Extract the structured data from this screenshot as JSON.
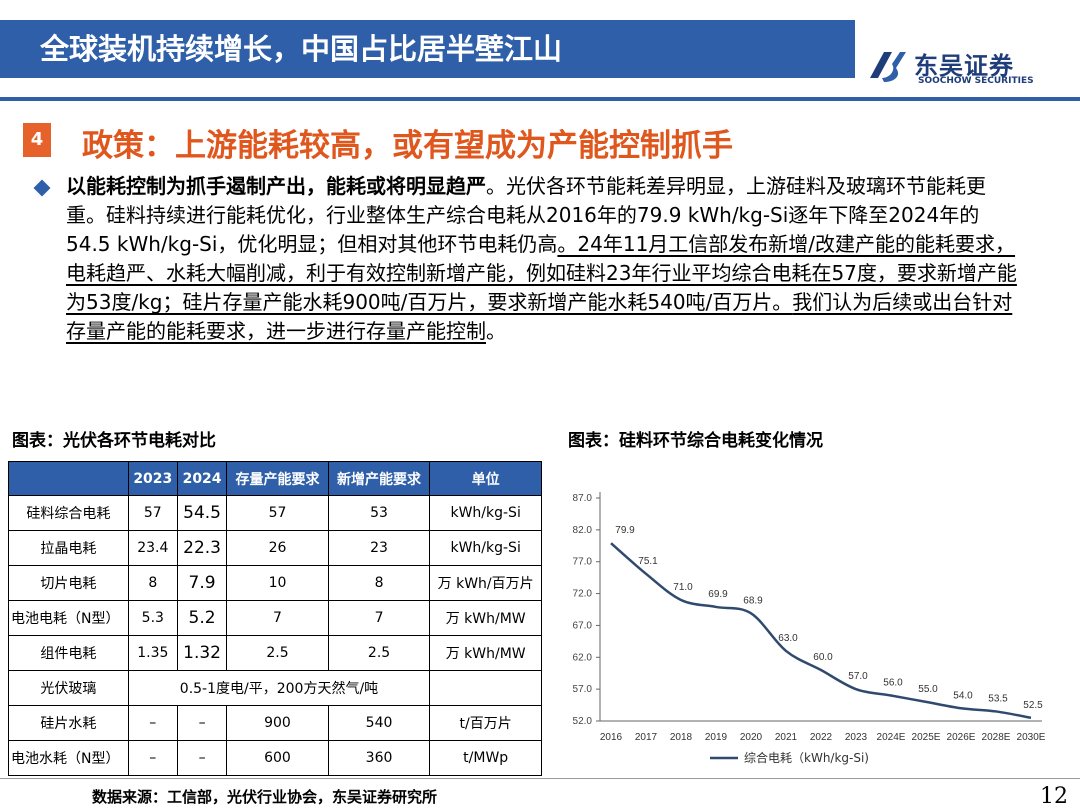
{
  "header": {
    "title": "全球装机持续增长，中国占比居半壁江山"
  },
  "logo": {
    "cn": "东吴证券",
    "en": "SOOCHOW SECURITIES"
  },
  "section": {
    "number": "4",
    "title": "政策：上游能耗较高，或有望成为产能控制抓手"
  },
  "paragraph": {
    "bold_lead": "以能耗控制为抓手遏制产出，能耗或将明显趋严",
    "part1": "。光伏各环节能耗差异明显，上游硅料及玻璃环节能耗更重。硅料持续进行能耗优化，行业整体生产综合电耗从2016年的79.9 kWh/kg-Si逐年下降至2024年的54.5 kWh/kg-Si，优化明显；但相对其他环节电耗仍高",
    "underlined": "。24年11月工信部发布新增/改建产能的能耗要求，电耗趋严、水耗大幅削减，利于有效控制新增产能，例如硅料23年行业平均综合电耗在57度，要求新增产能为53度/kg；硅片存量产能水耗900吨/百万片，要求新增产能水耗540吨/百万片。",
    "underlined2": "我们认为后续或出台针对存量产能的能耗要求，进一步进行存量产能控制",
    "tail": "。"
  },
  "left_caption": "图表：光伏各环节电耗对比",
  "right_caption": "图表：硅料环节综合电耗变化情况",
  "table": {
    "headers": [
      "",
      "2023",
      "2024",
      "存量产能要求",
      "新增产能要求",
      "单位"
    ],
    "rows": [
      [
        "硅料综合电耗",
        "57",
        "54.5",
        "57",
        "53",
        "kWh/kg-Si"
      ],
      [
        "拉晶电耗",
        "23.4",
        "22.3",
        "26",
        "23",
        "kWh/kg-Si"
      ],
      [
        "切片电耗",
        "8",
        "7.9",
        "10",
        "8",
        "万 kWh/百万片"
      ],
      [
        "电池电耗（N型）",
        "5.3",
        "5.2",
        "7",
        "7",
        "万 kWh/MW"
      ],
      [
        "组件电耗",
        "1.35",
        "1.32",
        "2.5",
        "2.5",
        "万 kWh/MW"
      ]
    ],
    "glass_row": {
      "label": "光伏玻璃",
      "value": "0.5-1度电/平，200方天然气/吨"
    },
    "water_rows": [
      [
        "硅片水耗",
        "–",
        "–",
        "900",
        "540",
        "t/百万片"
      ],
      [
        "电池水耗（N型）",
        "–",
        "–",
        "600",
        "360",
        "t/MWp"
      ]
    ]
  },
  "chart_data": {
    "type": "line",
    "categories": [
      "2016",
      "2017",
      "2018",
      "2019",
      "2020",
      "2021",
      "2022",
      "2023",
      "2024E",
      "2025E",
      "2026E",
      "2028E",
      "2030E"
    ],
    "series": [
      {
        "name": "综合电耗（kWh/kg-Si)",
        "values": [
          79.9,
          75.1,
          71.0,
          69.9,
          68.9,
          63.0,
          60.0,
          57.0,
          56.0,
          55.0,
          54.0,
          53.5,
          52.5
        ],
        "color": "#2f4a6e"
      }
    ],
    "yticks": [
      "87.0",
      "82.0",
      "77.0",
      "72.0",
      "67.0",
      "62.0",
      "57.0",
      "52.0"
    ],
    "ylim": [
      52,
      87
    ],
    "grid": false,
    "legend": "bottom"
  },
  "source": "数据来源：工信部，光伏行业协会，东吴证券研究所",
  "page_number": "12",
  "colors": {
    "brand_blue": "#2e5fa8",
    "accent_orange": "#e0571e",
    "line": "#2f4a6e"
  }
}
